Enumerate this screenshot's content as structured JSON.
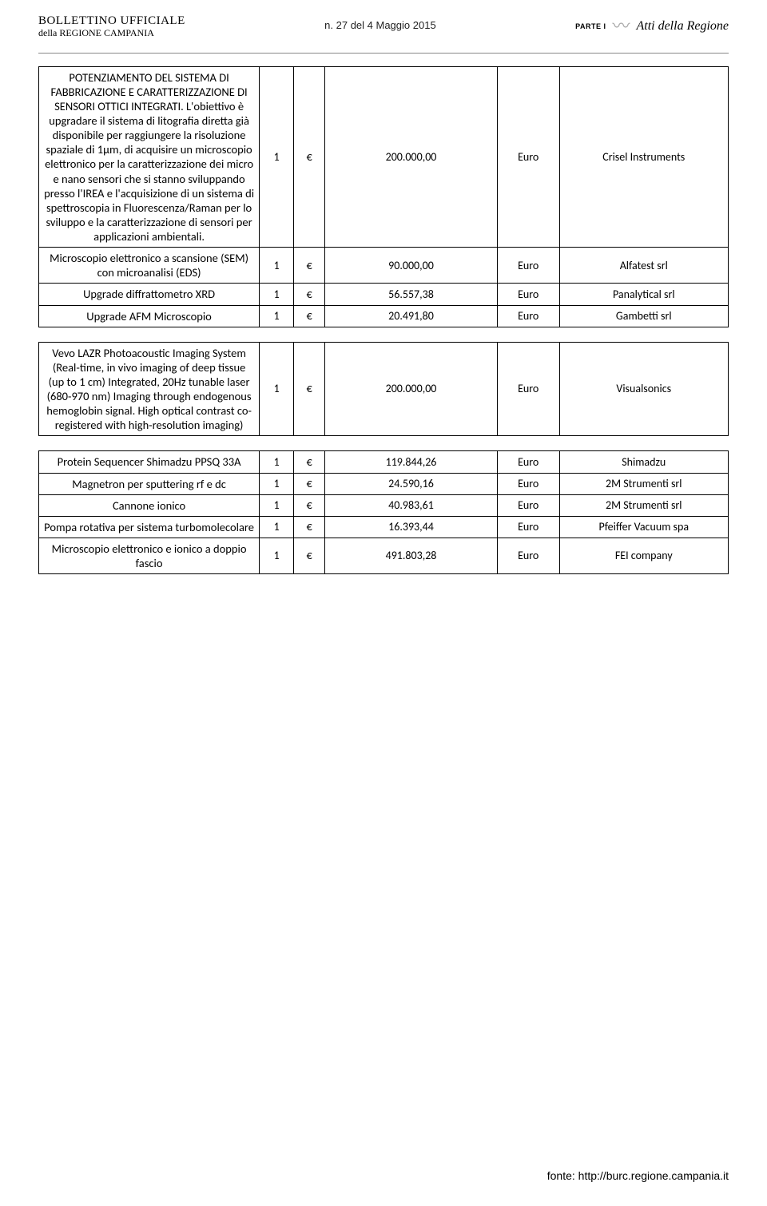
{
  "header": {
    "line1": "BOLLETTINO UFFICIALE",
    "line2": "della REGIONE CAMPANIA",
    "center": "n. 27 del  4 Maggio 2015",
    "parte": "PARTE I",
    "atti": "Atti della Regione"
  },
  "tables": [
    {
      "rows": [
        {
          "desc": "POTENZIAMENTO DEL SISTEMA DI FABBRICAZIONE E CARATTERIZZAZIONE DI SENSORI OTTICI INTEGRATI. L'obiettivo è upgradare il sistema di litografia diretta già disponibile per raggiungere la risoluzione spaziale di 1µm, di acquisire un microscopio elettronico per la caratterizzazione dei micro e nano sensori che si stanno sviluppando presso l'IREA e l'acquisizione di un sistema di spettroscopia in Fluorescenza/Raman per lo sviluppo e la caratterizzazione di sensori per applicazioni ambientali.",
          "qty": "1",
          "cur": "€",
          "price": "200.000,00",
          "unit": "Euro",
          "supplier": "Crisel Instruments"
        },
        {
          "desc": "Microscopio elettronico a scansione (SEM) con microanalisi (EDS)",
          "qty": "1",
          "cur": "€",
          "price": "90.000,00",
          "unit": "Euro",
          "supplier": "Alfatest srl"
        },
        {
          "desc": "Upgrade diffrattometro XRD",
          "qty": "1",
          "cur": "€",
          "price": "56.557,38",
          "unit": "Euro",
          "supplier": "Panalytical srl"
        },
        {
          "desc": "Upgrade AFM Microscopio",
          "qty": "1",
          "cur": "€",
          "price": "20.491,80",
          "unit": "Euro",
          "supplier": "Gambetti srl"
        }
      ]
    },
    {
      "rows": [
        {
          "desc": "Vevo LAZR Photoacoustic Imaging System (Real-time, in vivo imaging of deep tissue (up to 1 cm) Integrated, 20Hz tunable laser (680-970 nm) Imaging through endogenous hemoglobin signal. High optical contrast co-registered with high-resolution imaging)",
          "qty": "1",
          "cur": "€",
          "price": "200.000,00",
          "unit": "Euro",
          "supplier": "Visualsonics"
        }
      ]
    },
    {
      "rows": [
        {
          "desc": "Protein Sequencer Shimadzu PPSQ 33A",
          "qty": "1",
          "cur": "€",
          "price": "119.844,26",
          "unit": "Euro",
          "supplier": "Shimadzu"
        },
        {
          "desc": "Magnetron per sputtering rf e dc",
          "qty": "1",
          "cur": "€",
          "price": "24.590,16",
          "unit": "Euro",
          "supplier": "2M Strumenti srl"
        },
        {
          "desc": "Cannone ionico",
          "qty": "1",
          "cur": "€",
          "price": "40.983,61",
          "unit": "Euro",
          "supplier": "2M Strumenti srl"
        },
        {
          "desc": "Pompa rotativa per sistema turbomolecolare",
          "qty": "1",
          "cur": "€",
          "price": "16.393,44",
          "unit": "Euro",
          "supplier": "Pfeiffer Vacuum spa"
        },
        {
          "desc": "Microscopio elettronico e ionico a doppio fascio",
          "qty": "1",
          "cur": "€",
          "price": "491.803,28",
          "unit": "Euro",
          "supplier": "FEI company"
        }
      ]
    }
  ],
  "footer": "fonte: http://burc.regione.campania.it"
}
